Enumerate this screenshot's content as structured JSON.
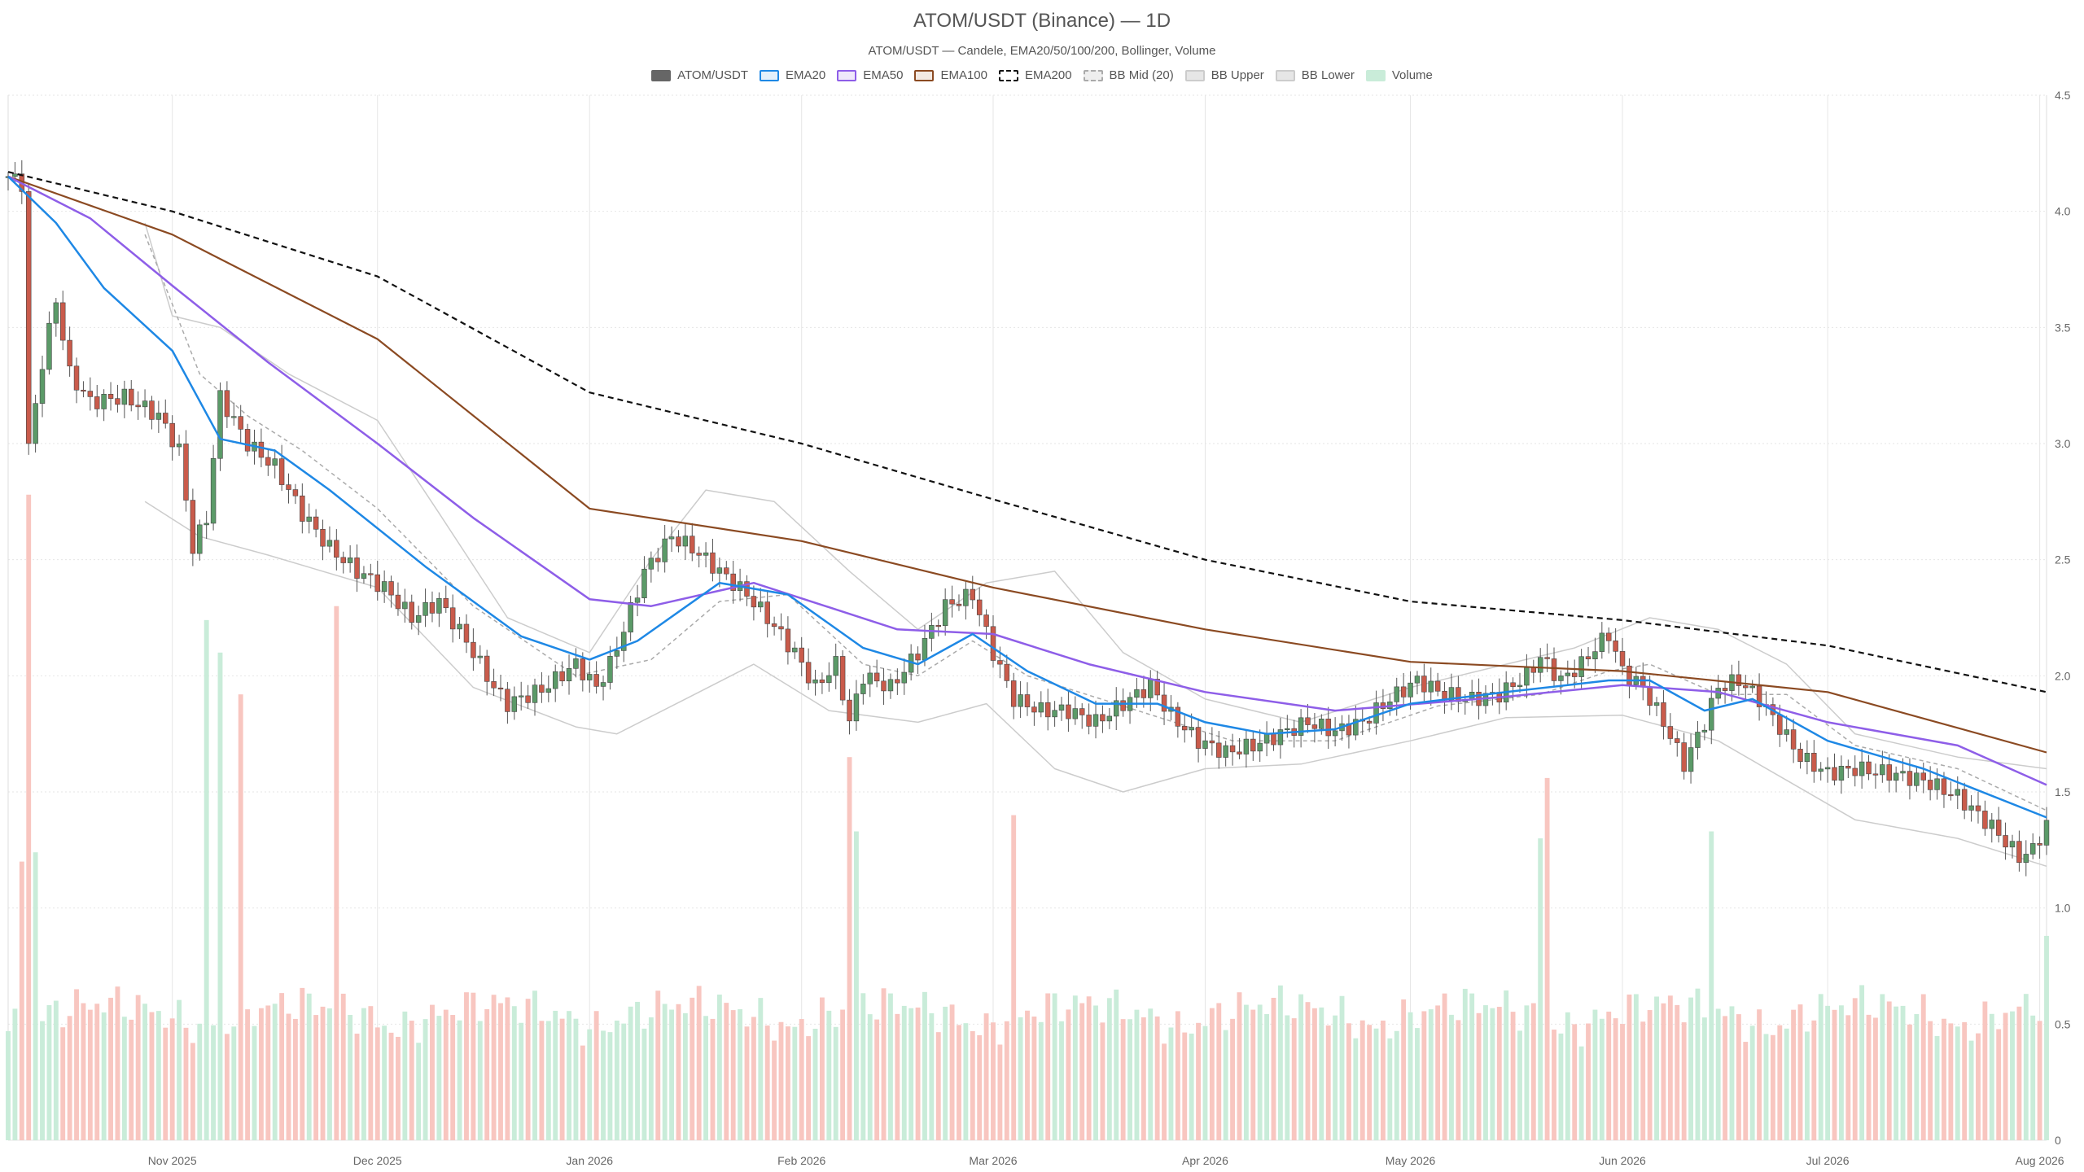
{
  "chart_data": {
    "type": "candlestick",
    "title": "ATOM/USDT (Binance) — 1D",
    "subtitle": "ATOM/USDT — Candele, EMA20/50/100/200, Bollinger, Volume",
    "legend": [
      {
        "label": "ATOM/USDT",
        "key": "candles",
        "color": "#666666",
        "fill": "#666666",
        "style": "solid"
      },
      {
        "label": "EMA20",
        "key": "ema20",
        "color": "#1e88e5",
        "fill": "#e3f0fb",
        "style": "solid"
      },
      {
        "label": "EMA50",
        "key": "ema50",
        "color": "#8e5ee8",
        "fill": "#efe8fb",
        "style": "solid"
      },
      {
        "label": "EMA100",
        "key": "ema100",
        "color": "#8b4a22",
        "fill": "#f3e9e2",
        "style": "solid"
      },
      {
        "label": "EMA200",
        "key": "ema200",
        "color": "#111111",
        "fill": "#ffffff",
        "style": "dashed"
      },
      {
        "label": "BB Mid (20)",
        "key": "bb_mid",
        "color": "#aaaaaa",
        "fill": "#eeeeee",
        "style": "dashed"
      },
      {
        "label": "BB Upper",
        "key": "bb_upper",
        "color": "#cccccc",
        "fill": "#e6e6e6",
        "style": "solid"
      },
      {
        "label": "BB Lower",
        "key": "bb_lower",
        "color": "#cccccc",
        "fill": "#e6e6e6",
        "style": "solid"
      },
      {
        "label": "Volume",
        "key": "volume",
        "color": "#c9ecd9",
        "fill": "#c9ecd9",
        "style": "solid"
      }
    ],
    "colors": {
      "up": "#5b9a68",
      "down": "#c95b4b",
      "vol_up": "#c9ecd9",
      "vol_down": "#f8c6c0",
      "grid": "#e6e6e6"
    },
    "x_start": "2025-10-08",
    "x_end": "2026-08-02",
    "x_tick_labels": [
      {
        "label": "Nov 2025",
        "date": "2025-11-01"
      },
      {
        "label": "Dec 2025",
        "date": "2025-12-01"
      },
      {
        "label": "Jan 2026",
        "date": "2026-01-01"
      },
      {
        "label": "Feb 2026",
        "date": "2026-02-01"
      },
      {
        "label": "Mar 2026",
        "date": "2026-03-01"
      },
      {
        "label": "Apr 2026",
        "date": "2026-04-01"
      },
      {
        "label": "May 2026",
        "date": "2026-05-01"
      },
      {
        "label": "Jun 2026",
        "date": "2026-06-01"
      },
      {
        "label": "Jul 2026",
        "date": "2026-07-01"
      },
      {
        "label": "Aug 2026",
        "date": "2026-08-01"
      }
    ],
    "y_ticks": [
      "0",
      "0.5",
      "1.0",
      "1.5",
      "2.0",
      "2.5",
      "3.0",
      "3.5",
      "4.0",
      "4.5"
    ],
    "ylim": [
      0,
      4.5
    ],
    "close_path": [
      [
        "2025-10-08",
        4.15
      ],
      [
        "2025-10-10",
        4.12
      ],
      [
        "2025-10-11",
        2.98
      ],
      [
        "2025-10-13",
        3.35
      ],
      [
        "2025-10-15",
        3.62
      ],
      [
        "2025-10-17",
        3.3
      ],
      [
        "2025-10-20",
        3.18
      ],
      [
        "2025-10-25",
        3.2
      ],
      [
        "2025-10-30",
        3.12
      ],
      [
        "2025-11-02",
        2.97
      ],
      [
        "2025-11-04",
        2.55
      ],
      [
        "2025-11-06",
        2.68
      ],
      [
        "2025-11-08",
        3.2
      ],
      [
        "2025-11-12",
        3.0
      ],
      [
        "2025-11-16",
        2.9
      ],
      [
        "2025-11-20",
        2.7
      ],
      [
        "2025-11-24",
        2.55
      ],
      [
        "2025-11-28",
        2.45
      ],
      [
        "2025-12-02",
        2.38
      ],
      [
        "2025-12-06",
        2.25
      ],
      [
        "2025-12-10",
        2.32
      ],
      [
        "2025-12-14",
        2.15
      ],
      [
        "2025-12-18",
        1.95
      ],
      [
        "2025-12-20",
        1.88
      ],
      [
        "2025-12-25",
        1.94
      ],
      [
        "2025-12-30",
        2.05
      ],
      [
        "2026-01-02",
        1.95
      ],
      [
        "2026-01-04",
        2.05
      ],
      [
        "2026-01-06",
        2.2
      ],
      [
        "2026-01-09",
        2.45
      ],
      [
        "2026-01-13",
        2.6
      ],
      [
        "2026-01-16",
        2.55
      ],
      [
        "2026-01-20",
        2.45
      ],
      [
        "2026-01-24",
        2.35
      ],
      [
        "2026-01-27",
        2.25
      ],
      [
        "2026-01-31",
        2.1
      ],
      [
        "2026-02-03",
        1.95
      ],
      [
        "2026-02-06",
        2.05
      ],
      [
        "2026-02-08",
        1.8
      ],
      [
        "2026-02-10",
        2.0
      ],
      [
        "2026-02-14",
        1.95
      ],
      [
        "2026-02-18",
        2.1
      ],
      [
        "2026-02-22",
        2.3
      ],
      [
        "2026-02-26",
        2.35
      ],
      [
        "2026-03-01",
        2.1
      ],
      [
        "2026-03-04",
        1.9
      ],
      [
        "2026-03-08",
        1.85
      ],
      [
        "2026-03-12",
        1.85
      ],
      [
        "2026-03-16",
        1.8
      ],
      [
        "2026-03-20",
        1.88
      ],
      [
        "2026-03-24",
        1.96
      ],
      [
        "2026-03-27",
        1.83
      ],
      [
        "2026-03-31",
        1.72
      ],
      [
        "2026-04-04",
        1.67
      ],
      [
        "2026-04-08",
        1.7
      ],
      [
        "2026-04-12",
        1.75
      ],
      [
        "2026-04-16",
        1.8
      ],
      [
        "2026-04-20",
        1.76
      ],
      [
        "2026-04-24",
        1.8
      ],
      [
        "2026-04-28",
        1.9
      ],
      [
        "2026-05-02",
        1.98
      ],
      [
        "2026-05-06",
        1.92
      ],
      [
        "2026-05-10",
        1.9
      ],
      [
        "2026-05-14",
        1.92
      ],
      [
        "2026-05-18",
        2.0
      ],
      [
        "2026-05-20",
        2.08
      ],
      [
        "2026-05-23",
        1.98
      ],
      [
        "2026-05-26",
        2.05
      ],
      [
        "2026-05-28",
        2.12
      ],
      [
        "2026-05-30",
        2.18
      ],
      [
        "2026-06-01",
        2.02
      ],
      [
        "2026-06-04",
        1.95
      ],
      [
        "2026-06-07",
        1.8
      ],
      [
        "2026-06-10",
        1.62
      ],
      [
        "2026-06-13",
        1.8
      ],
      [
        "2026-06-15",
        1.95
      ],
      [
        "2026-06-18",
        1.98
      ],
      [
        "2026-06-21",
        1.9
      ],
      [
        "2026-06-24",
        1.78
      ],
      [
        "2026-06-27",
        1.65
      ],
      [
        "2026-07-01",
        1.58
      ],
      [
        "2026-07-05",
        1.6
      ],
      [
        "2026-07-10",
        1.58
      ],
      [
        "2026-07-15",
        1.55
      ],
      [
        "2026-07-20",
        1.48
      ],
      [
        "2026-07-25",
        1.35
      ],
      [
        "2026-07-29",
        1.22
      ],
      [
        "2026-07-31",
        1.25
      ],
      [
        "2026-08-02",
        1.36
      ]
    ],
    "ema20": [
      [
        "2025-10-08",
        4.15
      ],
      [
        "2025-10-15",
        3.95
      ],
      [
        "2025-10-22",
        3.67
      ],
      [
        "2025-11-01",
        3.4
      ],
      [
        "2025-11-08",
        3.02
      ],
      [
        "2025-11-16",
        2.97
      ],
      [
        "2025-11-24",
        2.8
      ],
      [
        "2025-12-08",
        2.47
      ],
      [
        "2025-12-22",
        2.17
      ],
      [
        "2026-01-01",
        2.07
      ],
      [
        "2026-01-08",
        2.15
      ],
      [
        "2026-01-20",
        2.4
      ],
      [
        "2026-01-30",
        2.35
      ],
      [
        "2026-02-10",
        2.12
      ],
      [
        "2026-02-18",
        2.05
      ],
      [
        "2026-02-26",
        2.18
      ],
      [
        "2026-03-06",
        2.02
      ],
      [
        "2026-03-16",
        1.88
      ],
      [
        "2026-03-25",
        1.88
      ],
      [
        "2026-04-01",
        1.8
      ],
      [
        "2026-04-10",
        1.75
      ],
      [
        "2026-04-20",
        1.77
      ],
      [
        "2026-05-01",
        1.88
      ],
      [
        "2026-05-15",
        1.93
      ],
      [
        "2026-05-30",
        1.98
      ],
      [
        "2026-06-05",
        1.98
      ],
      [
        "2026-06-13",
        1.85
      ],
      [
        "2026-06-20",
        1.9
      ],
      [
        "2026-07-01",
        1.72
      ],
      [
        "2026-07-15",
        1.6
      ],
      [
        "2026-08-02",
        1.39
      ]
    ],
    "ema50": [
      [
        "2025-10-08",
        4.15
      ],
      [
        "2025-10-20",
        3.97
      ],
      [
        "2025-11-01",
        3.68
      ],
      [
        "2025-11-15",
        3.35
      ],
      [
        "2025-12-01",
        3.0
      ],
      [
        "2025-12-15",
        2.68
      ],
      [
        "2026-01-01",
        2.33
      ],
      [
        "2026-01-10",
        2.3
      ],
      [
        "2026-01-25",
        2.4
      ],
      [
        "2026-02-15",
        2.2
      ],
      [
        "2026-03-01",
        2.18
      ],
      [
        "2026-03-15",
        2.05
      ],
      [
        "2026-04-01",
        1.93
      ],
      [
        "2026-04-20",
        1.85
      ],
      [
        "2026-05-15",
        1.91
      ],
      [
        "2026-06-01",
        1.96
      ],
      [
        "2026-06-15",
        1.93
      ],
      [
        "2026-07-01",
        1.8
      ],
      [
        "2026-07-20",
        1.7
      ],
      [
        "2026-08-02",
        1.53
      ]
    ],
    "ema100": [
      [
        "2025-10-08",
        4.15
      ],
      [
        "2025-11-01",
        3.9
      ],
      [
        "2025-12-01",
        3.45
      ],
      [
        "2026-01-01",
        2.72
      ],
      [
        "2026-02-01",
        2.58
      ],
      [
        "2026-03-01",
        2.38
      ],
      [
        "2026-04-01",
        2.2
      ],
      [
        "2026-05-01",
        2.06
      ],
      [
        "2026-06-01",
        2.02
      ],
      [
        "2026-07-01",
        1.93
      ],
      [
        "2026-08-02",
        1.67
      ]
    ],
    "ema200": [
      [
        "2025-10-08",
        4.17
      ],
      [
        "2025-11-01",
        4.0
      ],
      [
        "2025-12-01",
        3.72
      ],
      [
        "2026-01-01",
        3.22
      ],
      [
        "2026-02-01",
        3.0
      ],
      [
        "2026-03-01",
        2.76
      ],
      [
        "2026-04-01",
        2.5
      ],
      [
        "2026-05-01",
        2.32
      ],
      [
        "2026-06-01",
        2.24
      ],
      [
        "2026-07-01",
        2.13
      ],
      [
        "2026-08-02",
        1.93
      ]
    ],
    "bb_mid": [
      [
        "2025-10-28",
        3.9
      ],
      [
        "2025-11-05",
        3.3
      ],
      [
        "2025-11-12",
        3.12
      ],
      [
        "2025-11-20",
        2.97
      ],
      [
        "2025-12-01",
        2.72
      ],
      [
        "2025-12-15",
        2.3
      ],
      [
        "2025-12-30",
        2.0
      ],
      [
        "2026-01-10",
        2.07
      ],
      [
        "2026-01-20",
        2.32
      ],
      [
        "2026-01-30",
        2.35
      ],
      [
        "2026-02-10",
        2.05
      ],
      [
        "2026-02-18",
        2.0
      ],
      [
        "2026-02-26",
        2.15
      ],
      [
        "2026-03-06",
        2.0
      ],
      [
        "2026-03-20",
        1.87
      ],
      [
        "2026-04-05",
        1.72
      ],
      [
        "2026-04-20",
        1.72
      ],
      [
        "2026-05-05",
        1.87
      ],
      [
        "2026-05-20",
        1.92
      ],
      [
        "2026-05-30",
        2.02
      ],
      [
        "2026-06-05",
        2.05
      ],
      [
        "2026-06-15",
        1.92
      ],
      [
        "2026-06-25",
        1.92
      ],
      [
        "2026-07-05",
        1.7
      ],
      [
        "2026-07-20",
        1.6
      ],
      [
        "2026-08-02",
        1.42
      ]
    ],
    "bb_upper": [
      [
        "2025-10-28",
        3.95
      ],
      [
        "2025-11-01",
        3.55
      ],
      [
        "2025-11-08",
        3.5
      ],
      [
        "2025-11-18",
        3.3
      ],
      [
        "2025-12-01",
        3.1
      ],
      [
        "2025-12-10",
        2.7
      ],
      [
        "2025-12-20",
        2.25
      ],
      [
        "2026-01-01",
        2.1
      ],
      [
        "2026-01-10",
        2.5
      ],
      [
        "2026-01-18",
        2.8
      ],
      [
        "2026-01-28",
        2.75
      ],
      [
        "2026-02-08",
        2.45
      ],
      [
        "2026-02-18",
        2.2
      ],
      [
        "2026-02-28",
        2.4
      ],
      [
        "2026-03-10",
        2.45
      ],
      [
        "2026-03-20",
        2.1
      ],
      [
        "2026-04-01",
        1.9
      ],
      [
        "2026-04-15",
        1.8
      ],
      [
        "2026-05-01",
        1.95
      ],
      [
        "2026-05-15",
        2.05
      ],
      [
        "2026-05-25",
        2.12
      ],
      [
        "2026-06-05",
        2.25
      ],
      [
        "2026-06-15",
        2.2
      ],
      [
        "2026-06-25",
        2.05
      ],
      [
        "2026-07-05",
        1.75
      ],
      [
        "2026-07-20",
        1.65
      ],
      [
        "2026-08-02",
        1.6
      ]
    ],
    "bb_lower": [
      [
        "2025-10-28",
        2.75
      ],
      [
        "2025-11-05",
        2.6
      ],
      [
        "2025-11-15",
        2.52
      ],
      [
        "2025-12-01",
        2.38
      ],
      [
        "2025-12-15",
        1.95
      ],
      [
        "2025-12-30",
        1.78
      ],
      [
        "2026-01-05",
        1.75
      ],
      [
        "2026-01-15",
        1.9
      ],
      [
        "2026-01-25",
        2.05
      ],
      [
        "2026-02-05",
        1.85
      ],
      [
        "2026-02-18",
        1.8
      ],
      [
        "2026-02-28",
        1.88
      ],
      [
        "2026-03-10",
        1.6
      ],
      [
        "2026-03-20",
        1.5
      ],
      [
        "2026-04-01",
        1.6
      ],
      [
        "2026-04-15",
        1.62
      ],
      [
        "2026-05-01",
        1.72
      ],
      [
        "2026-05-15",
        1.82
      ],
      [
        "2026-06-01",
        1.83
      ],
      [
        "2026-06-15",
        1.72
      ],
      [
        "2026-06-25",
        1.55
      ],
      [
        "2026-07-05",
        1.38
      ],
      [
        "2026-07-20",
        1.3
      ],
      [
        "2026-08-02",
        1.18
      ]
    ],
    "volume_spikes": [
      [
        "2025-10-10",
        1.2
      ],
      [
        "2025-10-11",
        2.78
      ],
      [
        "2025-10-12",
        1.24
      ],
      [
        "2025-11-06",
        2.24
      ],
      [
        "2025-11-08",
        2.1
      ],
      [
        "2025-11-11",
        1.92
      ],
      [
        "2025-11-25",
        2.3
      ],
      [
        "2026-02-08",
        1.65
      ],
      [
        "2026-02-09",
        1.33
      ],
      [
        "2026-03-04",
        1.4
      ],
      [
        "2026-05-20",
        1.3
      ],
      [
        "2026-05-21",
        1.56
      ],
      [
        "2026-06-14",
        1.33
      ],
      [
        "2026-08-02",
        0.88
      ]
    ],
    "volume_base": 0.38,
    "volume_swing": 0.18
  }
}
